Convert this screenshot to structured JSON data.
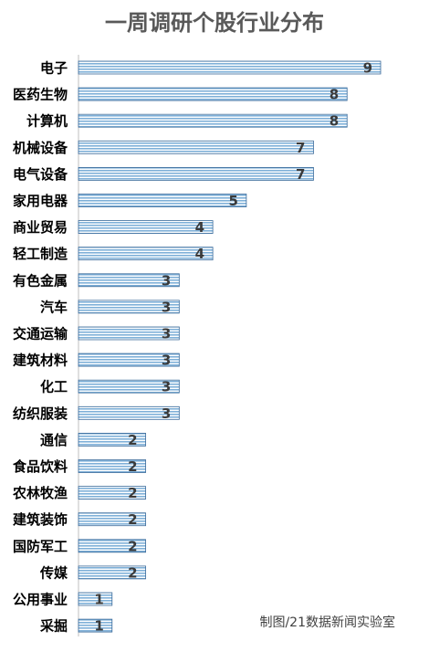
{
  "chart_data": {
    "type": "bar",
    "orientation": "horizontal",
    "title": "一周调研个股行业分布",
    "categories": [
      "电子",
      "医药生物",
      "计算机",
      "机械设备",
      "电气设备",
      "家用电器",
      "商业贸易",
      "轻工制造",
      "有色金属",
      "汽车",
      "交通运输",
      "建筑材料",
      "化工",
      "纺织服装",
      "通信",
      "食品饮料",
      "农林牧渔",
      "建筑装饰",
      "国防军工",
      "传媒",
      "公用事业",
      "采掘"
    ],
    "values": [
      9,
      8,
      8,
      7,
      7,
      5,
      4,
      4,
      3,
      3,
      3,
      3,
      3,
      3,
      2,
      2,
      2,
      2,
      2,
      2,
      1,
      1
    ],
    "xlim": [
      0,
      9
    ],
    "grid": false,
    "legend": "none",
    "data_labels": true,
    "bar_color": "#7fb0d8",
    "bar_stripe_color": "#ffffff",
    "bar_border_color": "#3a6a9a",
    "source_note": "制图/21数据新闻实验室"
  }
}
